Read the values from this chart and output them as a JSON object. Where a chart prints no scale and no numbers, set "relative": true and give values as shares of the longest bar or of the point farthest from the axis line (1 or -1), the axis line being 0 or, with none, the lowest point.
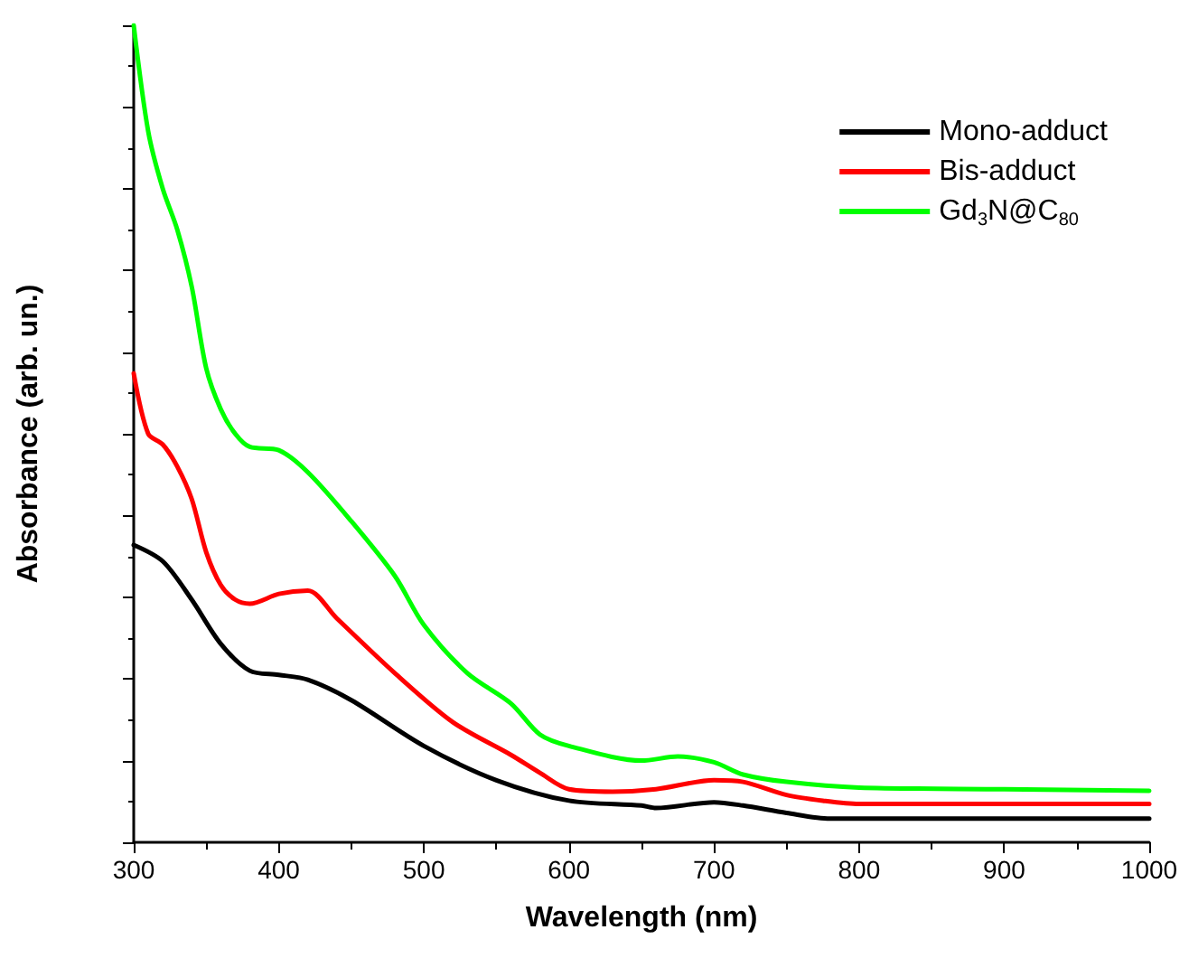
{
  "chart_data": {
    "type": "line",
    "relative": true,
    "xlabel": "Wavelength (nm)",
    "ylabel": "Absorbance (arb. un.)",
    "xlim": [
      300,
      1000
    ],
    "xticks": [
      300,
      400,
      500,
      600,
      700,
      800,
      900,
      1000
    ],
    "grid": false,
    "legend": "top right",
    "marker": "none",
    "line_style": "solid",
    "series": [
      {
        "name": "Mono-adduct",
        "color": "#000000",
        "x": [
          300,
          320,
          340,
          360,
          380,
          400,
          420,
          450,
          500,
          550,
          600,
          650,
          660,
          700,
          720,
          750,
          780,
          800,
          1000
        ],
        "values": [
          0.364,
          0.344,
          0.297,
          0.243,
          0.21,
          0.205,
          0.199,
          0.174,
          0.118,
          0.076,
          0.051,
          0.045,
          0.042,
          0.049,
          0.045,
          0.036,
          0.029,
          0.029,
          0.029
        ]
      },
      {
        "name": "Bis-adduct",
        "color": "#ff0000",
        "x": [
          300,
          310,
          320,
          330,
          340,
          350,
          360,
          370,
          380,
          400,
          420,
          440,
          480,
          520,
          560,
          580,
          600,
          630,
          660,
          700,
          720,
          750,
          775,
          800,
          1000
        ],
        "values": [
          0.574,
          0.5,
          0.487,
          0.46,
          0.42,
          0.355,
          0.315,
          0.297,
          0.292,
          0.304,
          0.308,
          0.274,
          0.207,
          0.147,
          0.107,
          0.085,
          0.065,
          0.062,
          0.065,
          0.076,
          0.074,
          0.058,
          0.051,
          0.047,
          0.047
        ]
      },
      {
        "name": "Gd$_{3}$N@C$_{80}$",
        "color": "#00ff00",
        "x": [
          300,
          310,
          320,
          330,
          340,
          350,
          360,
          370,
          380,
          400,
          420,
          450,
          480,
          500,
          530,
          560,
          580,
          600,
          650,
          675,
          700,
          720,
          750,
          800,
          900,
          1000
        ],
        "values": [
          1.0,
          0.87,
          0.8,
          0.75,
          0.68,
          0.58,
          0.53,
          0.5,
          0.484,
          0.48,
          0.453,
          0.393,
          0.326,
          0.266,
          0.207,
          0.17,
          0.132,
          0.118,
          0.1,
          0.105,
          0.098,
          0.083,
          0.074,
          0.067,
          0.065,
          0.063
        ]
      }
    ]
  }
}
